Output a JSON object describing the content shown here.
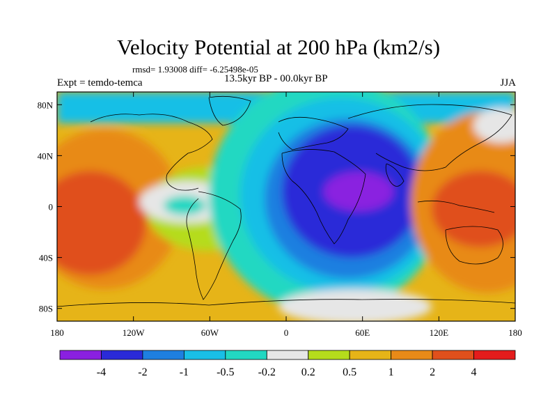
{
  "header": {
    "title": "Velocity Potential at 200 hPa (km2/s)",
    "stats": "rmsd= 1.93008 diff= -6.25498e-05",
    "experiment": "Expt = temdo-temca",
    "period": "13.5kyr BP - 00.0kyr BP",
    "season": "JJA"
  },
  "chart_data": {
    "type": "heatmap",
    "title": "Velocity Potential at 200 hPa (km2/s)",
    "xlabel": "",
    "ylabel": "",
    "xlim": [
      -180,
      180
    ],
    "ylim": [
      -90,
      90
    ],
    "x_ticks": [
      -180,
      -120,
      -60,
      0,
      60,
      120,
      180
    ],
    "x_tick_labels": [
      "180",
      "120W",
      "60W",
      "0",
      "60E",
      "120E",
      "180"
    ],
    "y_ticks": [
      80,
      40,
      0,
      -40,
      -80
    ],
    "y_tick_labels": [
      "80N",
      "40N",
      "0",
      "40S",
      "80S"
    ],
    "colorbar": {
      "labels": [
        "-4",
        "-2",
        "-1",
        "-0.5",
        "-0.2",
        "0.2",
        "0.5",
        "1",
        "2",
        "4"
      ],
      "colors": [
        "#8a20e0",
        "#2a2ad8",
        "#1e7fe0",
        "#19bfe6",
        "#22d8c2",
        "#e6e6e6",
        "#b5dc1c",
        "#e6b418",
        "#e88a18",
        "#e0501c",
        "#e41c1c"
      ]
    },
    "regions": [
      {
        "name": "eastern Pacific maximum",
        "level": 4,
        "lon": -160,
        "lat": -15
      },
      {
        "name": "central Pacific band",
        "level": 3,
        "lon": -140,
        "lat": 10
      },
      {
        "name": "Atlantic-Africa minimum",
        "level": -2,
        "lon": 40,
        "lat": 10
      },
      {
        "name": "Saharan core minimum",
        "level": -4,
        "lon": 55,
        "lat": 15
      },
      {
        "name": "western Pacific maximum",
        "level": 3,
        "lon": 150,
        "lat": 0
      },
      {
        "name": "Arctic band",
        "level": -1,
        "lon": 0,
        "lat": 70
      }
    ]
  }
}
